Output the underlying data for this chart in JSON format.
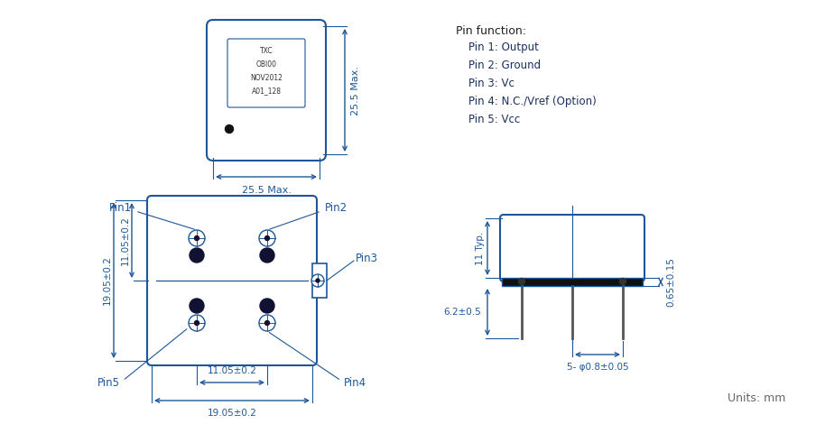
{
  "bg_color": "#ffffff",
  "blue": "#1e5799",
  "dark": "#1a1a2e",
  "pin_func_title": "Pin function:",
  "pin_funcs": [
    "Pin 1: Output",
    "Pin 2: Ground",
    "Pin 3: Vc",
    "Pin 4: N.C./Vref (Option)",
    "Pin 5: Vcc"
  ],
  "units_text": "Units: mm",
  "top_label_w": "25.5 Max.",
  "top_label_h": "25.5 Max.",
  "dim_labels": {
    "left_outer": "19.05±0.2",
    "left_inner": "11.05±0.2",
    "bottom_inner": "11.05±0.2",
    "bottom_outer": "19.05±0.2"
  },
  "side_labels": {
    "height": "11 Typ.",
    "lower": "6.2±0.5",
    "pin_dia": "5- φ0.8±0.05",
    "thickness": "0.65±0.15"
  },
  "chip_label_lines": [
    "TXC",
    "OBI00",
    "NOV2012",
    "A01_128"
  ]
}
